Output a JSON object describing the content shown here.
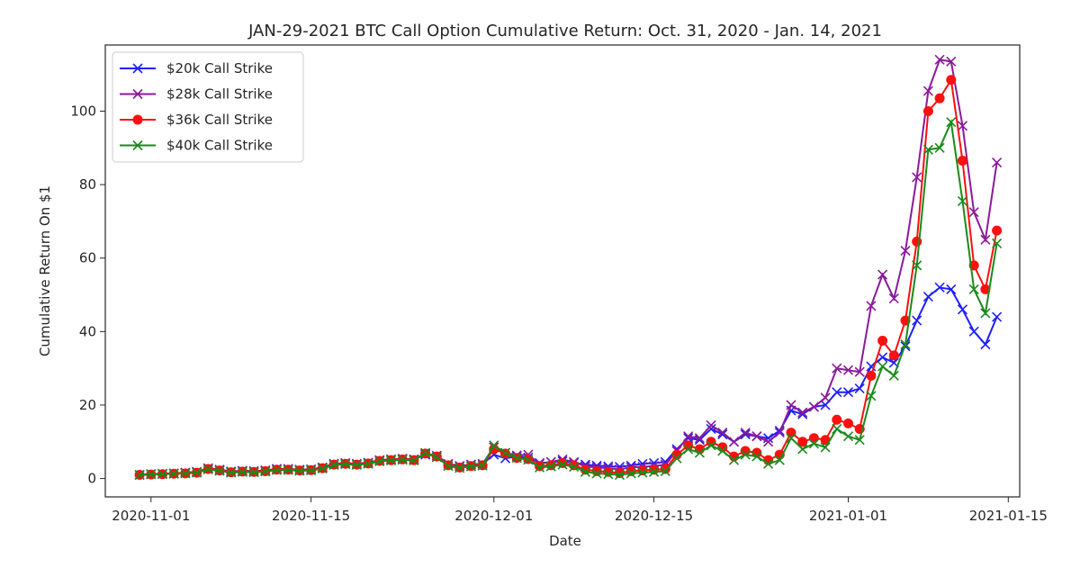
{
  "chart_data": {
    "type": "line",
    "title": "JAN-29-2021 BTC Call Option Cumulative Return: Oct. 31, 2020 - Jan. 14, 2021",
    "xlabel": "Date",
    "ylabel": "Cumulative Return On $1",
    "xlim": [
      "2020-10-28",
      "2021-01-16"
    ],
    "ylim": [
      -5,
      118
    ],
    "x_ticks": [
      "2020-11-01",
      "2020-11-15",
      "2020-12-01",
      "2020-12-15",
      "2021-01-01",
      "2021-01-15"
    ],
    "y_ticks": [
      0,
      20,
      40,
      60,
      80,
      100
    ],
    "legend_position": "upper-left",
    "x": [
      "2020-10-31",
      "2020-11-01",
      "2020-11-02",
      "2020-11-03",
      "2020-11-04",
      "2020-11-05",
      "2020-11-06",
      "2020-11-07",
      "2020-11-08",
      "2020-11-09",
      "2020-11-10",
      "2020-11-11",
      "2020-11-12",
      "2020-11-13",
      "2020-11-14",
      "2020-11-15",
      "2020-11-16",
      "2020-11-17",
      "2020-11-18",
      "2020-11-19",
      "2020-11-20",
      "2020-11-21",
      "2020-11-22",
      "2020-11-23",
      "2020-11-24",
      "2020-11-25",
      "2020-11-26",
      "2020-11-27",
      "2020-11-28",
      "2020-11-29",
      "2020-11-30",
      "2020-12-01",
      "2020-12-02",
      "2020-12-03",
      "2020-12-04",
      "2020-12-05",
      "2020-12-06",
      "2020-12-07",
      "2020-12-08",
      "2020-12-09",
      "2020-12-10",
      "2020-12-11",
      "2020-12-12",
      "2020-12-13",
      "2020-12-14",
      "2020-12-15",
      "2020-12-16",
      "2020-12-17",
      "2020-12-18",
      "2020-12-19",
      "2020-12-20",
      "2020-12-21",
      "2020-12-22",
      "2020-12-23",
      "2020-12-24",
      "2020-12-25",
      "2020-12-26",
      "2020-12-27",
      "2020-12-28",
      "2020-12-29",
      "2020-12-30",
      "2020-12-31",
      "2021-01-01",
      "2021-01-02",
      "2021-01-03",
      "2021-01-04",
      "2021-01-05",
      "2021-01-06",
      "2021-01-07",
      "2021-01-08",
      "2021-01-09",
      "2021-01-10",
      "2021-01-11",
      "2021-01-12",
      "2021-01-13",
      "2021-01-14"
    ],
    "series": [
      {
        "name": "$20k Call Strike",
        "color": "#1f1fff",
        "marker": "x",
        "values": [
          1.0,
          1.2,
          1.3,
          1.4,
          1.6,
          1.8,
          2.8,
          2.4,
          1.9,
          2.1,
          2.0,
          2.2,
          2.6,
          2.6,
          2.4,
          2.5,
          3.0,
          4.0,
          4.2,
          4.0,
          4.3,
          5.0,
          5.2,
          5.4,
          5.2,
          6.5,
          6.2,
          4.0,
          3.4,
          3.8,
          4.0,
          6.5,
          5.5,
          6.0,
          5.7,
          4.2,
          4.5,
          4.7,
          4.3,
          3.8,
          3.5,
          3.3,
          3.2,
          3.5,
          4.0,
          4.2,
          4.5,
          8.0,
          11.0,
          10.5,
          13.5,
          12.0,
          10.0,
          12.0,
          11.5,
          11.0,
          13.0,
          18.5,
          17.5,
          19.5,
          20.0,
          23.5,
          23.5,
          24.5,
          30.5,
          33.0,
          31.5,
          36.0,
          43.0,
          49.5,
          52.0,
          51.5,
          46.0,
          40.0,
          36.5,
          44.0
        ]
      },
      {
        "name": "$28k Call Strike",
        "color": "#8b1a9b",
        "marker": "x",
        "values": [
          1.0,
          1.2,
          1.3,
          1.4,
          1.6,
          1.8,
          2.8,
          2.4,
          1.9,
          2.1,
          2.0,
          2.2,
          2.6,
          2.6,
          2.4,
          2.5,
          3.0,
          4.0,
          4.2,
          4.0,
          4.3,
          5.0,
          5.2,
          5.4,
          5.2,
          6.8,
          6.2,
          4.0,
          3.4,
          3.8,
          4.0,
          8.5,
          7.0,
          6.3,
          6.5,
          4.0,
          4.5,
          5.2,
          4.5,
          3.3,
          3.0,
          2.8,
          2.5,
          3.0,
          3.2,
          3.4,
          3.8,
          7.5,
          11.5,
          11.0,
          14.5,
          12.5,
          10.0,
          12.5,
          11.5,
          10.0,
          12.5,
          20.0,
          18.0,
          19.5,
          22.0,
          30.0,
          29.5,
          29.0,
          47.0,
          55.5,
          49.0,
          62.0,
          82.0,
          105.5,
          114.0,
          113.5,
          96.0,
          72.5,
          65.0,
          86.0
        ]
      },
      {
        "name": "$36k Call Strike",
        "color": "#ff0f0f",
        "marker": "o",
        "values": [
          1.0,
          1.1,
          1.2,
          1.3,
          1.4,
          1.6,
          2.6,
          2.2,
          1.7,
          1.9,
          1.8,
          2.0,
          2.4,
          2.4,
          2.2,
          2.3,
          2.8,
          3.8,
          4.0,
          3.8,
          4.1,
          4.8,
          5.0,
          5.2,
          5.0,
          6.8,
          6.0,
          3.6,
          3.0,
          3.4,
          3.6,
          8.0,
          6.8,
          5.6,
          5.3,
          3.4,
          3.6,
          4.2,
          3.6,
          2.4,
          2.0,
          1.8,
          1.5,
          2.0,
          2.2,
          2.4,
          2.6,
          6.5,
          9.0,
          8.0,
          10.0,
          8.5,
          6.0,
          7.5,
          7.0,
          5.0,
          6.5,
          12.5,
          10.0,
          11.0,
          10.5,
          16.0,
          15.0,
          13.5,
          28.0,
          37.5,
          33.5,
          43.0,
          64.5,
          100.0,
          103.5,
          108.5,
          86.5,
          58.0,
          51.5,
          67.5
        ]
      },
      {
        "name": "$40k Call Strike",
        "color": "#1a8a1a",
        "marker": "x",
        "values": [
          1.0,
          1.1,
          1.2,
          1.3,
          1.4,
          1.6,
          2.5,
          2.1,
          1.6,
          1.8,
          1.7,
          1.9,
          2.3,
          2.3,
          2.1,
          2.2,
          2.7,
          3.7,
          3.9,
          3.7,
          4.0,
          4.7,
          4.9,
          5.1,
          4.9,
          7.0,
          5.8,
          3.4,
          2.9,
          3.3,
          3.5,
          9.0,
          7.0,
          5.6,
          5.1,
          3.0,
          3.3,
          3.8,
          3.2,
          1.8,
          1.4,
          1.2,
          1.0,
          1.4,
          1.6,
          1.8,
          2.0,
          5.5,
          8.0,
          7.0,
          9.0,
          7.5,
          5.0,
          6.5,
          6.0,
          4.0,
          5.0,
          11.0,
          8.0,
          9.5,
          8.5,
          13.5,
          11.5,
          10.5,
          22.5,
          30.5,
          28.0,
          36.5,
          58.0,
          89.5,
          90.0,
          97.0,
          75.5,
          51.5,
          45.0,
          64.0
        ]
      }
    ]
  }
}
